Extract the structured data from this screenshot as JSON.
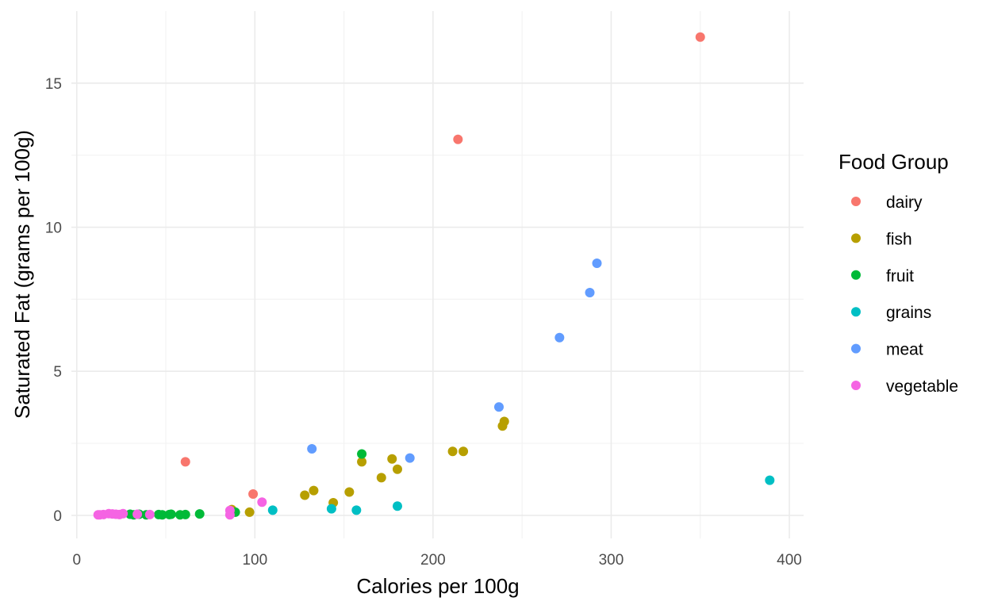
{
  "chart_data": {
    "type": "scatter",
    "xlabel": "Calories per 100g",
    "ylabel": "Saturated Fat (grams per 100g)",
    "xlim": [
      -3,
      408
    ],
    "ylim": [
      -0.8,
      17.5
    ],
    "x_ticks": [
      0,
      100,
      200,
      300,
      400
    ],
    "y_ticks": [
      0,
      5,
      10,
      15
    ],
    "grid": true,
    "legend": {
      "title": "Food Group",
      "placement": "right"
    },
    "series": [
      {
        "name": "dairy",
        "color": "#F8766D",
        "points": [
          [
            350,
            16.6
          ],
          [
            214,
            13.05
          ],
          [
            61,
            1.86
          ],
          [
            99,
            0.74
          ]
        ]
      },
      {
        "name": "fish",
        "color": "#B79F00",
        "points": [
          [
            240,
            3.26
          ],
          [
            239,
            3.1
          ],
          [
            211,
            2.22
          ],
          [
            217,
            2.22
          ],
          [
            177,
            1.96
          ],
          [
            160,
            1.86
          ],
          [
            180,
            1.6
          ],
          [
            171,
            1.31
          ],
          [
            133,
            0.86
          ],
          [
            128,
            0.7
          ],
          [
            153,
            0.81
          ],
          [
            144,
            0.44
          ],
          [
            97,
            0.11
          ],
          [
            87,
            0.2
          ]
        ]
      },
      {
        "name": "fruit",
        "color": "#00BA38",
        "points": [
          [
            160,
            2.13
          ],
          [
            89,
            0.11
          ],
          [
            69,
            0.05
          ],
          [
            61,
            0.03
          ],
          [
            58,
            0.02
          ],
          [
            53,
            0.04
          ],
          [
            52,
            0.03
          ],
          [
            48,
            0.02
          ],
          [
            46,
            0.03
          ],
          [
            39,
            0.02
          ],
          [
            35,
            0.04
          ],
          [
            32,
            0.02
          ],
          [
            30,
            0.04
          ]
        ]
      },
      {
        "name": "grains",
        "color": "#00BFC4",
        "points": [
          [
            389,
            1.22
          ],
          [
            180,
            0.32
          ],
          [
            157,
            0.18
          ],
          [
            143,
            0.23
          ],
          [
            110,
            0.18
          ]
        ]
      },
      {
        "name": "meat",
        "color": "#619CFF",
        "points": [
          [
            292,
            8.75
          ],
          [
            288,
            7.73
          ],
          [
            271,
            6.17
          ],
          [
            237,
            3.76
          ],
          [
            187,
            1.99
          ],
          [
            132,
            2.31
          ]
        ]
      },
      {
        "name": "vegetable",
        "color": "#F564E3",
        "points": [
          [
            104,
            0.46
          ],
          [
            86,
            0.17
          ],
          [
            86,
            0.02
          ],
          [
            41,
            0.03
          ],
          [
            34,
            0.04
          ],
          [
            26,
            0.06
          ],
          [
            24,
            0.03
          ],
          [
            22,
            0.04
          ],
          [
            20,
            0.05
          ],
          [
            18,
            0.06
          ],
          [
            15,
            0.03
          ],
          [
            13,
            0.02
          ],
          [
            12,
            0.02
          ]
        ]
      }
    ]
  }
}
